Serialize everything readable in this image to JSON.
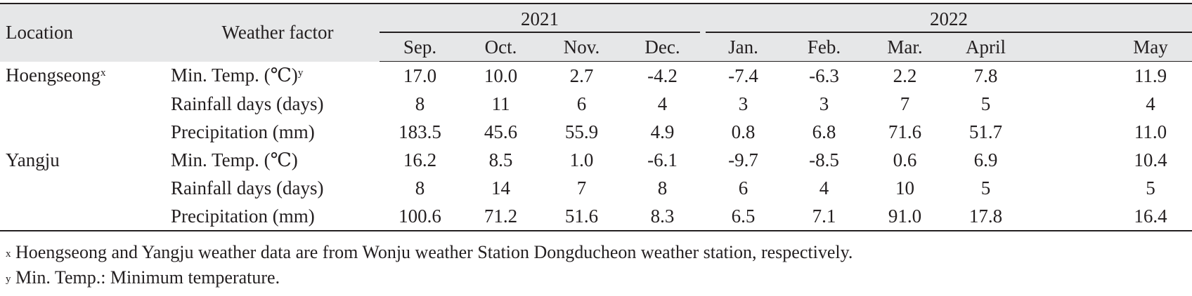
{
  "headers": {
    "location": "Location",
    "factor": "Weather factor",
    "years": [
      {
        "label": "2021",
        "span": 4
      },
      {
        "label": "2022",
        "span": 5
      }
    ],
    "months": [
      "Sep.",
      "Oct.",
      "Nov.",
      "Dec.",
      "Jan.",
      "Feb.",
      "Mar.",
      "April",
      "May"
    ]
  },
  "rows": [
    {
      "location": "Hoengseong",
      "location_sup": "x",
      "factor": "Min. Temp. (℃)",
      "factor_sup": "y",
      "values": [
        "17.0",
        "10.0",
        "2.7",
        "-4.2",
        "-7.4",
        "-6.3",
        "2.2",
        "7.8",
        "11.9"
      ]
    },
    {
      "location": "",
      "location_sup": "",
      "factor": "Rainfall days (days)",
      "factor_sup": "",
      "values": [
        "8",
        "11",
        "6",
        "4",
        "3",
        "3",
        "7",
        "5",
        "4"
      ]
    },
    {
      "location": "",
      "location_sup": "",
      "factor": "Precipitation (mm)",
      "factor_sup": "",
      "values": [
        "183.5",
        "45.6",
        "55.9",
        "4.9",
        "0.8",
        "6.8",
        "71.6",
        "51.7",
        "11.0"
      ]
    },
    {
      "location": "Yangju",
      "location_sup": "",
      "factor": "Min. Temp. (℃)",
      "factor_sup": "",
      "values": [
        "16.2",
        "8.5",
        "1.0",
        "-6.1",
        "-9.7",
        "-8.5",
        "0.6",
        "6.9",
        "10.4"
      ]
    },
    {
      "location": "",
      "location_sup": "",
      "factor": "Rainfall days (days)",
      "factor_sup": "",
      "values": [
        "8",
        "14",
        "7",
        "8",
        "6",
        "4",
        "10",
        "5",
        "5"
      ]
    },
    {
      "location": "",
      "location_sup": "",
      "factor": "Precipitation (mm)",
      "factor_sup": "",
      "values": [
        "100.6",
        "71.2",
        "51.6",
        "8.3",
        "6.5",
        "7.1",
        "91.0",
        "17.8",
        "16.4"
      ]
    }
  ],
  "footnotes": [
    {
      "mark": "x",
      "text": "Hoengseong and Yangju weather data are from Wonju weather Station Dongducheon weather station, respectively."
    },
    {
      "mark": "y",
      "text": "Min. Temp.: Minimum temperature."
    }
  ]
}
